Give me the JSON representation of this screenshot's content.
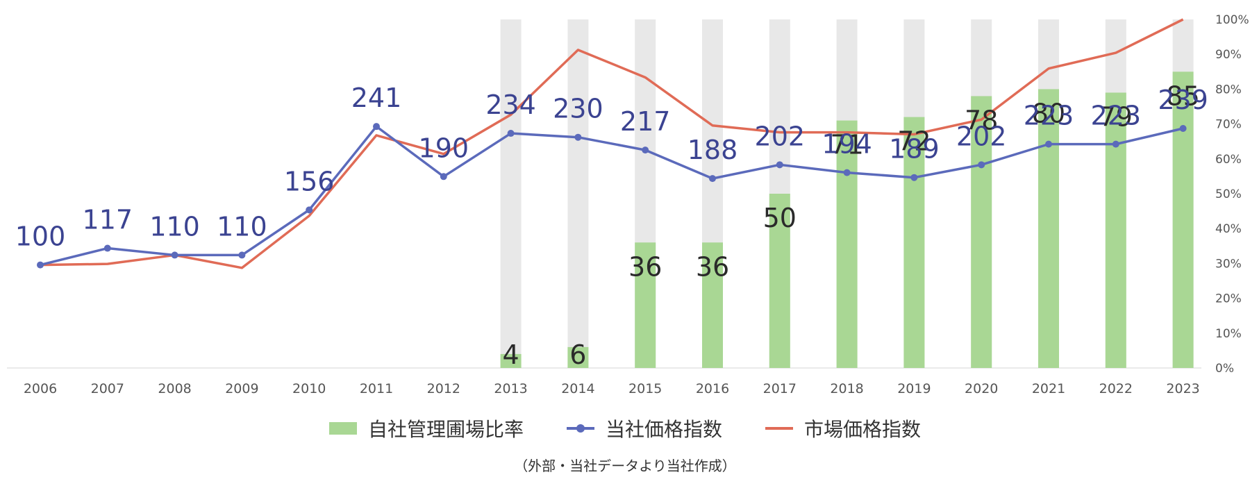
{
  "chart_data": {
    "type": "bar+line",
    "categories": [
      "2006",
      "2007",
      "2008",
      "2009",
      "2010",
      "2011",
      "2012",
      "2013",
      "2014",
      "2015",
      "2016",
      "2017",
      "2018",
      "2019",
      "2020",
      "2021",
      "2022",
      "2023"
    ],
    "series": [
      {
        "name": "自社管理圃場比率",
        "kind": "bar",
        "axis": "right",
        "values": [
          null,
          null,
          null,
          null,
          null,
          null,
          null,
          4,
          6,
          36,
          36,
          50,
          71,
          72,
          78,
          80,
          79,
          85
        ],
        "labels": [
          "",
          "",
          "",
          "",
          "",
          "",
          "",
          "4",
          "6",
          "36",
          "36",
          "50",
          "71",
          "72",
          "78",
          "80",
          "79",
          "85"
        ],
        "color": "#a9d794",
        "background_color": "#e8e8e8"
      },
      {
        "name": "当社価格指数",
        "kind": "line-marker",
        "axis": "left",
        "values": [
          100,
          117,
          110,
          110,
          156,
          241,
          190,
          234,
          230,
          217,
          188,
          202,
          194,
          189,
          202,
          223,
          223,
          239
        ],
        "labels": [
          "100",
          "117",
          "110",
          "110",
          "156",
          "241",
          "190",
          "234",
          "230",
          "217",
          "188",
          "202",
          "194",
          "189",
          "202",
          "223",
          "223",
          "239"
        ],
        "color": "#5b6abb",
        "label_color": "#3b4391"
      },
      {
        "name": "市場価格指数",
        "kind": "line",
        "axis": "left",
        "values": [
          100,
          101,
          110,
          97,
          150,
          232,
          213,
          253,
          319,
          291,
          242,
          235,
          235,
          233,
          248,
          300,
          316,
          350
        ],
        "color": "#e06b56"
      }
    ],
    "right_axis": {
      "ticks": [
        "0%",
        "10%",
        "20%",
        "30%",
        "40%",
        "50%",
        "60%",
        "70%",
        "80%",
        "90%",
        "100%"
      ],
      "range": [
        0,
        100
      ]
    },
    "left_axis_range": [
      0,
      350
    ],
    "legend_position": "bottom",
    "grid": false
  },
  "legend": {
    "bar_label": "自社管理圃場比率",
    "company_label": "当社価格指数",
    "market_label": "市場価格指数"
  },
  "source_note": "（外部・当社データより当社作成）"
}
